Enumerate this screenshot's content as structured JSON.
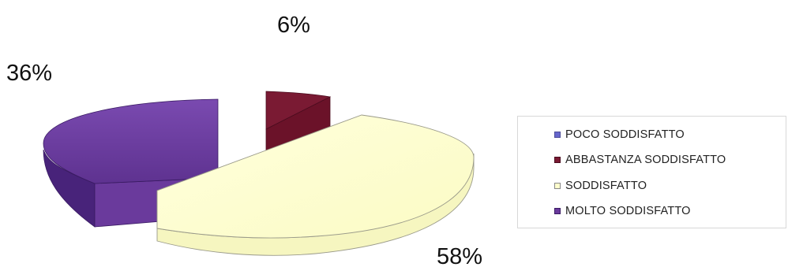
{
  "chart_data": {
    "type": "pie",
    "title": "",
    "three_d": true,
    "exploded": true,
    "categories": [
      "POCO SODDISFATTO",
      "ABBASTANZA SODDISFATTO",
      "SODDISFATTO",
      "MOLTO SODDISFATTO"
    ],
    "values": [
      0,
      6,
      58,
      36
    ],
    "data_labels": [
      "",
      "6%",
      "58%",
      "36%"
    ],
    "colors": [
      "#6666cc",
      "#7a1a33",
      "#ffffcc",
      "#6a3a9c"
    ],
    "legend_position": "right"
  }
}
